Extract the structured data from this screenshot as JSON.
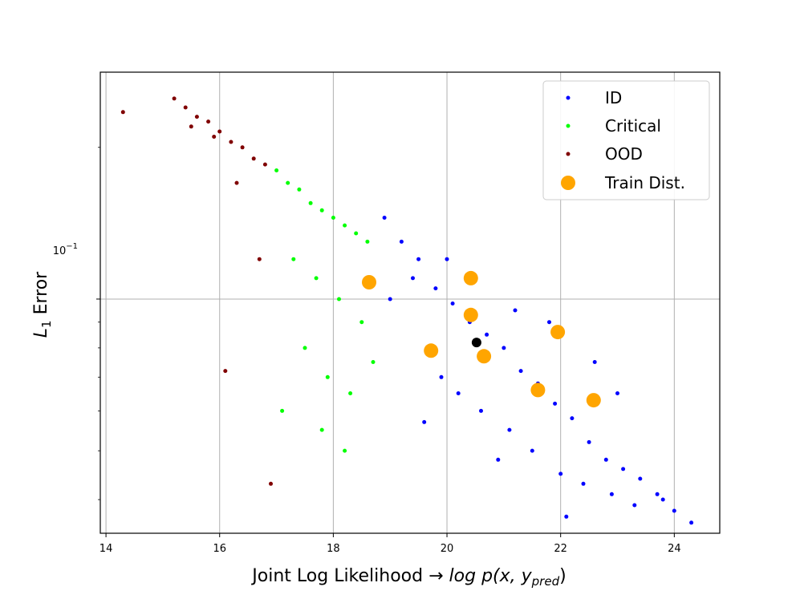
{
  "chart_data": {
    "type": "scatter",
    "xlabel": "Joint Log Likelihood",
    "xlabel_arrow": "→",
    "xlabel_math": "log p(x, y",
    "xlabel_math_sub": "pred",
    "xlabel_math_close": ")",
    "ylabel": "L",
    "ylabel_sub": "1",
    "ylabel_suffix": " Error",
    "xlim": [
      13.9,
      24.8
    ],
    "ylim": [
      0.0343,
      0.282
    ],
    "yscale": "log",
    "grid": true,
    "legend_position": "top-right",
    "xticks": [
      14,
      16,
      18,
      20,
      22,
      24
    ],
    "xtick_labels": [
      "14",
      "16",
      "18",
      "20",
      "22",
      "24"
    ],
    "ytick_label_base": "10",
    "ytick_label_exp": "−1",
    "ytick_value": 0.1,
    "series": [
      {
        "name": "ID",
        "color": "#0000ff",
        "x": [
          18.9,
          19.2,
          19.5,
          19.8,
          20.1,
          20.4,
          20.7,
          21.0,
          21.3,
          21.6,
          21.9,
          22.2,
          22.5,
          22.8,
          23.1,
          23.4,
          23.7,
          24.0,
          24.3,
          19.0,
          19.4,
          19.9,
          20.2,
          20.6,
          21.1,
          21.5,
          22.0,
          22.4,
          22.9,
          23.3,
          23.8,
          20.0,
          20.5,
          21.2,
          21.8,
          22.6,
          23.0,
          19.6,
          20.9,
          22.1
        ],
        "y": [
          0.145,
          0.13,
          0.12,
          0.105,
          0.098,
          0.09,
          0.085,
          0.08,
          0.072,
          0.068,
          0.062,
          0.058,
          0.052,
          0.048,
          0.046,
          0.044,
          0.041,
          0.038,
          0.036,
          0.1,
          0.11,
          0.07,
          0.065,
          0.06,
          0.055,
          0.05,
          0.045,
          0.043,
          0.041,
          0.039,
          0.04,
          0.12,
          0.11,
          0.095,
          0.09,
          0.075,
          0.065,
          0.057,
          0.048,
          0.037
        ]
      },
      {
        "name": "Critical",
        "color": "#00ff00",
        "x": [
          17.0,
          17.2,
          17.4,
          17.6,
          17.8,
          18.0,
          18.2,
          18.4,
          18.6,
          17.3,
          17.7,
          18.1,
          18.5,
          17.5,
          17.9,
          18.3,
          17.1,
          17.8,
          18.2,
          18.7
        ],
        "y": [
          0.18,
          0.17,
          0.165,
          0.155,
          0.15,
          0.145,
          0.14,
          0.135,
          0.13,
          0.12,
          0.11,
          0.1,
          0.09,
          0.08,
          0.07,
          0.065,
          0.06,
          0.055,
          0.05,
          0.075
        ]
      },
      {
        "name": "OOD",
        "color": "#800000",
        "x": [
          14.3,
          15.2,
          15.4,
          15.6,
          15.8,
          16.0,
          16.2,
          16.4,
          16.6,
          16.8,
          15.5,
          15.9,
          16.3,
          16.7,
          16.1,
          16.9
        ],
        "y": [
          0.235,
          0.25,
          0.24,
          0.23,
          0.225,
          0.215,
          0.205,
          0.2,
          0.19,
          0.185,
          0.22,
          0.21,
          0.17,
          0.12,
          0.072,
          0.043
        ]
      },
      {
        "name": "Train Dist.",
        "color": "#ffa500",
        "x": [
          18.63,
          19.72,
          20.42,
          20.42,
          20.65,
          21.6,
          21.95,
          22.58
        ],
        "y": [
          0.108,
          0.079,
          0.11,
          0.093,
          0.077,
          0.066,
          0.086,
          0.063
        ]
      },
      {
        "color": "#000000",
        "x": [
          20.52
        ],
        "y": [
          0.082
        ]
      }
    ]
  }
}
